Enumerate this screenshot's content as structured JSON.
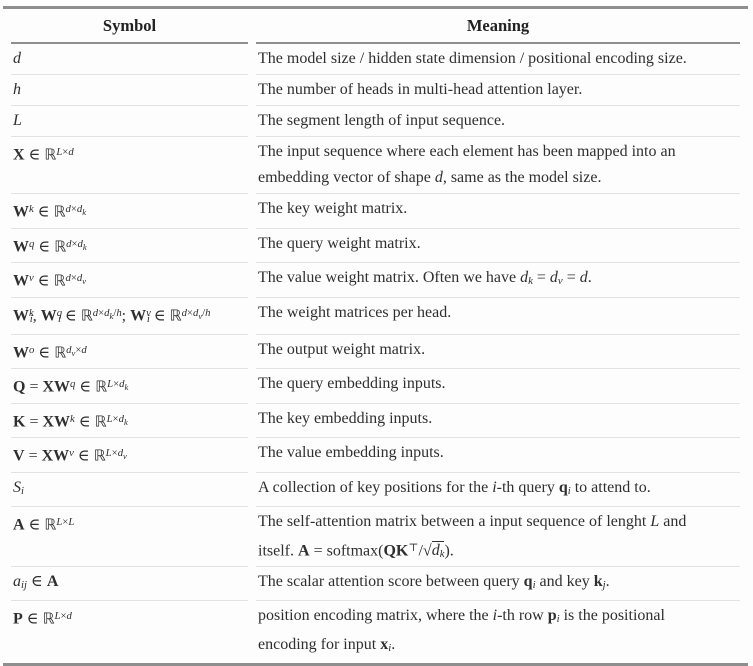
{
  "header": {
    "symbol": "Symbol",
    "meaning": "Meaning"
  },
  "table": {
    "rows": [
      {
        "sym": [
          {
            "t": "d",
            "f": "i"
          }
        ],
        "mean": [
          {
            "t": "The model size / hidden state dimension / positional encoding size."
          }
        ]
      },
      {
        "sym": [
          {
            "t": "h",
            "f": "i"
          }
        ],
        "mean": [
          {
            "t": "The number of heads in multi-head attention layer."
          }
        ]
      },
      {
        "sym": [
          {
            "t": "L",
            "f": "i"
          }
        ],
        "mean": [
          {
            "t": "The segment length of input sequence."
          }
        ]
      },
      {
        "sym": [
          {
            "t": "X",
            "f": "b"
          },
          {
            "t": " ∈ "
          },
          {
            "t": "ℝ",
            "f": "bb"
          },
          {
            "t": "L",
            "f": "i sup"
          },
          {
            "t": "×",
            "f": "sup"
          },
          {
            "t": "d",
            "f": "i sup"
          }
        ],
        "mean": [
          {
            "t": "The input sequence where each element has been mapped into an"
          },
          {
            "br": true
          },
          {
            "t": "embedding vector of shape "
          },
          {
            "t": "d",
            "f": "i"
          },
          {
            "t": ", same as the model size."
          }
        ]
      },
      {
        "sym": [
          {
            "t": "W",
            "f": "b"
          },
          {
            "t": "k",
            "f": "i sup"
          },
          {
            "t": " ∈ "
          },
          {
            "t": "ℝ",
            "f": "bb"
          },
          {
            "t": "d",
            "f": "i sup"
          },
          {
            "t": "×",
            "f": "sup"
          },
          {
            "t": "d",
            "f": "i sup"
          },
          {
            "t": "k",
            "f": "i ss"
          }
        ],
        "mean": [
          {
            "t": "The key weight matrix."
          }
        ]
      },
      {
        "sym": [
          {
            "t": "W",
            "f": "b"
          },
          {
            "t": "q",
            "f": "i sup"
          },
          {
            "t": " ∈ "
          },
          {
            "t": "ℝ",
            "f": "bb"
          },
          {
            "t": "d",
            "f": "i sup"
          },
          {
            "t": "×",
            "f": "sup"
          },
          {
            "t": "d",
            "f": "i sup"
          },
          {
            "t": "k",
            "f": "i ss"
          }
        ],
        "mean": [
          {
            "t": "The query weight matrix."
          }
        ]
      },
      {
        "sym": [
          {
            "t": "W",
            "f": "b"
          },
          {
            "t": "v",
            "f": "i sup"
          },
          {
            "t": " ∈ "
          },
          {
            "t": "ℝ",
            "f": "bb"
          },
          {
            "t": "d",
            "f": "i sup"
          },
          {
            "t": "×",
            "f": "sup"
          },
          {
            "t": "d",
            "f": "i sup"
          },
          {
            "t": "v",
            "f": "i ss"
          }
        ],
        "mean": [
          {
            "t": "The value weight matrix. Often we have "
          },
          {
            "t": "d",
            "f": "i"
          },
          {
            "t": "k",
            "f": "i sub"
          },
          {
            "t": " = "
          },
          {
            "t": "d",
            "f": "i"
          },
          {
            "t": "v",
            "f": "i sub"
          },
          {
            "t": " = "
          },
          {
            "t": "d",
            "f": "i"
          },
          {
            "t": "."
          }
        ]
      },
      {
        "sym": [
          {
            "t": "W",
            "f": "b"
          },
          {
            "t": "k",
            "f": "i sup"
          },
          {
            "t": "i",
            "f": "i sub pull"
          },
          {
            "t": ", "
          },
          {
            "t": "W",
            "f": "b"
          },
          {
            "t": "q",
            "f": "i sup"
          },
          {
            "t": "i",
            "f": "i sub pull"
          },
          {
            "t": " ∈ "
          },
          {
            "t": "ℝ",
            "f": "bb"
          },
          {
            "t": "d",
            "f": "i sup"
          },
          {
            "t": "×",
            "f": "sup"
          },
          {
            "t": "d",
            "f": "i sup"
          },
          {
            "t": "k",
            "f": "i ss"
          },
          {
            "t": "/",
            "f": "sup"
          },
          {
            "t": "h",
            "f": "i sup"
          },
          {
            "t": "; "
          },
          {
            "t": "W",
            "f": "b"
          },
          {
            "t": "v",
            "f": "i sup"
          },
          {
            "t": "i",
            "f": "i sub pull"
          },
          {
            "t": " ∈ "
          },
          {
            "t": "ℝ",
            "f": "bb"
          },
          {
            "t": "d",
            "f": "i sup"
          },
          {
            "t": "×",
            "f": "sup"
          },
          {
            "t": "d",
            "f": "i sup"
          },
          {
            "t": "v",
            "f": "i ss"
          },
          {
            "t": "/",
            "f": "sup"
          },
          {
            "t": "h",
            "f": "i sup"
          }
        ],
        "mean": [
          {
            "t": "The weight matrices per head."
          }
        ]
      },
      {
        "sym": [
          {
            "t": "W",
            "f": "b"
          },
          {
            "t": "o",
            "f": "i sup"
          },
          {
            "t": " ∈ "
          },
          {
            "t": "ℝ",
            "f": "bb"
          },
          {
            "t": "d",
            "f": "i sup"
          },
          {
            "t": "v",
            "f": "i ss"
          },
          {
            "t": "×",
            "f": "sup"
          },
          {
            "t": "d",
            "f": "i sup"
          }
        ],
        "mean": [
          {
            "t": "The output weight matrix."
          }
        ]
      },
      {
        "sym": [
          {
            "t": "Q",
            "f": "b"
          },
          {
            "t": " = "
          },
          {
            "t": "XW",
            "f": "b"
          },
          {
            "t": "q",
            "f": "i sup"
          },
          {
            "t": " ∈ "
          },
          {
            "t": "ℝ",
            "f": "bb"
          },
          {
            "t": "L",
            "f": "i sup"
          },
          {
            "t": "×",
            "f": "sup"
          },
          {
            "t": "d",
            "f": "i sup"
          },
          {
            "t": "k",
            "f": "i ss"
          }
        ],
        "mean": [
          {
            "t": "The query embedding inputs."
          }
        ]
      },
      {
        "sym": [
          {
            "t": "K",
            "f": "b"
          },
          {
            "t": " = "
          },
          {
            "t": "XW",
            "f": "b"
          },
          {
            "t": "k",
            "f": "i sup"
          },
          {
            "t": " ∈ "
          },
          {
            "t": "ℝ",
            "f": "bb"
          },
          {
            "t": "L",
            "f": "i sup"
          },
          {
            "t": "×",
            "f": "sup"
          },
          {
            "t": "d",
            "f": "i sup"
          },
          {
            "t": "k",
            "f": "i ss"
          }
        ],
        "mean": [
          {
            "t": "The key embedding inputs."
          }
        ]
      },
      {
        "sym": [
          {
            "t": "V",
            "f": "b"
          },
          {
            "t": " = "
          },
          {
            "t": "XW",
            "f": "b"
          },
          {
            "t": "v",
            "f": "i sup"
          },
          {
            "t": " ∈ "
          },
          {
            "t": "ℝ",
            "f": "bb"
          },
          {
            "t": "L",
            "f": "i sup"
          },
          {
            "t": "×",
            "f": "sup"
          },
          {
            "t": "d",
            "f": "i sup"
          },
          {
            "t": "v",
            "f": "i ss"
          }
        ],
        "mean": [
          {
            "t": "The value embedding inputs."
          }
        ]
      },
      {
        "sym": [
          {
            "t": "S",
            "f": "i"
          },
          {
            "t": "i",
            "f": "i sub"
          }
        ],
        "mean": [
          {
            "t": "A collection of key positions for the "
          },
          {
            "t": "i",
            "f": "i"
          },
          {
            "t": "-th query "
          },
          {
            "t": "q",
            "f": "b"
          },
          {
            "t": "i",
            "f": "i sub"
          },
          {
            "t": " to attend to."
          }
        ]
      },
      {
        "sym": [
          {
            "t": "A",
            "f": "b"
          },
          {
            "t": " ∈ "
          },
          {
            "t": "ℝ",
            "f": "bb"
          },
          {
            "t": "L",
            "f": "i sup"
          },
          {
            "t": "×",
            "f": "sup"
          },
          {
            "t": "L",
            "f": "i sup"
          }
        ],
        "mean": [
          {
            "t": "The self-attention matrix between a input sequence of lenght "
          },
          {
            "t": "L",
            "f": "i"
          },
          {
            "t": " and"
          },
          {
            "br": true
          },
          {
            "t": "itself. "
          },
          {
            "t": "A",
            "f": "b"
          },
          {
            "t": " = softmax("
          },
          {
            "t": "QK",
            "f": "b"
          },
          {
            "t": "⊤",
            "f": "sup"
          },
          {
            "t": "/"
          },
          {
            "sqrt": [
              {
                "t": "d",
                "f": "i"
              },
              {
                "t": "k",
                "f": "i sub"
              }
            ]
          },
          {
            "t": ")."
          }
        ]
      },
      {
        "sym": [
          {
            "t": "a",
            "f": "i"
          },
          {
            "t": "ij",
            "f": "i sub"
          },
          {
            "t": " ∈ "
          },
          {
            "t": "A",
            "f": "b"
          }
        ],
        "mean": [
          {
            "t": "The scalar attention score between query "
          },
          {
            "t": "q",
            "f": "b"
          },
          {
            "t": "i",
            "f": "i sub"
          },
          {
            "t": " and key "
          },
          {
            "t": "k",
            "f": "b"
          },
          {
            "t": "j",
            "f": "i sub"
          },
          {
            "t": "."
          }
        ]
      },
      {
        "sym": [
          {
            "t": "P",
            "f": "b"
          },
          {
            "t": " ∈ "
          },
          {
            "t": "ℝ",
            "f": "bb"
          },
          {
            "t": "L",
            "f": "i sup"
          },
          {
            "t": "×",
            "f": "sup"
          },
          {
            "t": "d",
            "f": "i sup"
          }
        ],
        "mean": [
          {
            "t": "position encoding matrix, where the "
          },
          {
            "t": "i",
            "f": "i"
          },
          {
            "t": "-th row "
          },
          {
            "t": "p",
            "f": "b"
          },
          {
            "t": "i",
            "f": "i sub"
          },
          {
            "t": " is the positional"
          },
          {
            "br": true
          },
          {
            "t": "encoding for input "
          },
          {
            "t": "x",
            "f": "b"
          },
          {
            "t": "i",
            "f": "i sub"
          },
          {
            "t": "."
          }
        ]
      }
    ]
  },
  "colors": {
    "text": "#2f2f2f",
    "heavy_rule": "#8e8e8e",
    "light_rule": "#e2e2e2",
    "background": "#fdfdfd"
  }
}
